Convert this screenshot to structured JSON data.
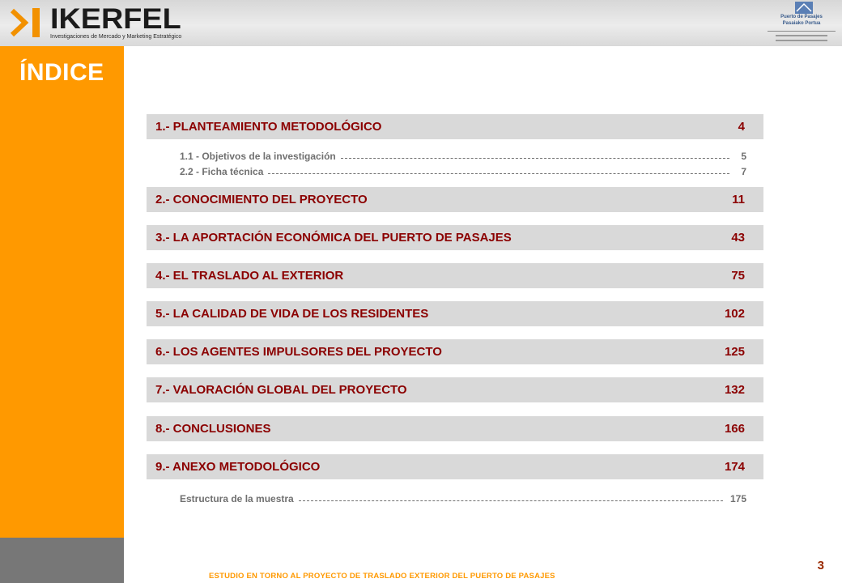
{
  "header": {
    "brand_name": "IKERFEL",
    "brand_tagline": "Investigaciones de Mercado y Marketing Estratégico",
    "partner_line1": "Puerto de Pasajes",
    "partner_line2": "Pasaiako Portua"
  },
  "title": "ÍNDICE",
  "sections": [
    {
      "label": "1.- PLANTEAMIENTO METODOLÓGICO",
      "page": "4"
    },
    {
      "label": "2.- CONOCIMIENTO DEL PROYECTO",
      "page": "11"
    },
    {
      "label": "3.- LA APORTACIÓN ECONÓMICA DEL PUERTO DE PASAJES",
      "page": "43"
    },
    {
      "label": "4.- EL TRASLADO AL EXTERIOR",
      "page": "75"
    },
    {
      "label": "5.- LA CALIDAD DE VIDA DE LOS RESIDENTES",
      "page": "102"
    },
    {
      "label": "6.- LOS AGENTES IMPULSORES DEL PROYECTO",
      "page": "125"
    },
    {
      "label": "7.- VALORACIÓN GLOBAL DEL PROYECTO",
      "page": "132"
    },
    {
      "label": "8.- CONCLUSIONES",
      "page": "166"
    },
    {
      "label": "9.- ANEXO METODOLÓGICO",
      "page": "174"
    }
  ],
  "subsections": [
    {
      "label": "1.1 - Objetivos de la investigación",
      "page": "5"
    },
    {
      "label": "2.2 - Ficha técnica",
      "page": "7"
    },
    {
      "label": "Estructura de la muestra",
      "page": "175"
    }
  ],
  "footer": {
    "study_title": "ESTUDIO EN TORNO AL PROYECTO DE TRASLADO EXTERIOR DEL PUERTO DE PASAJES",
    "page_number": "3"
  },
  "colors": {
    "accent_orange": "#ff9900",
    "section_text": "#8b0000",
    "section_bg": "#d9d9d9"
  }
}
